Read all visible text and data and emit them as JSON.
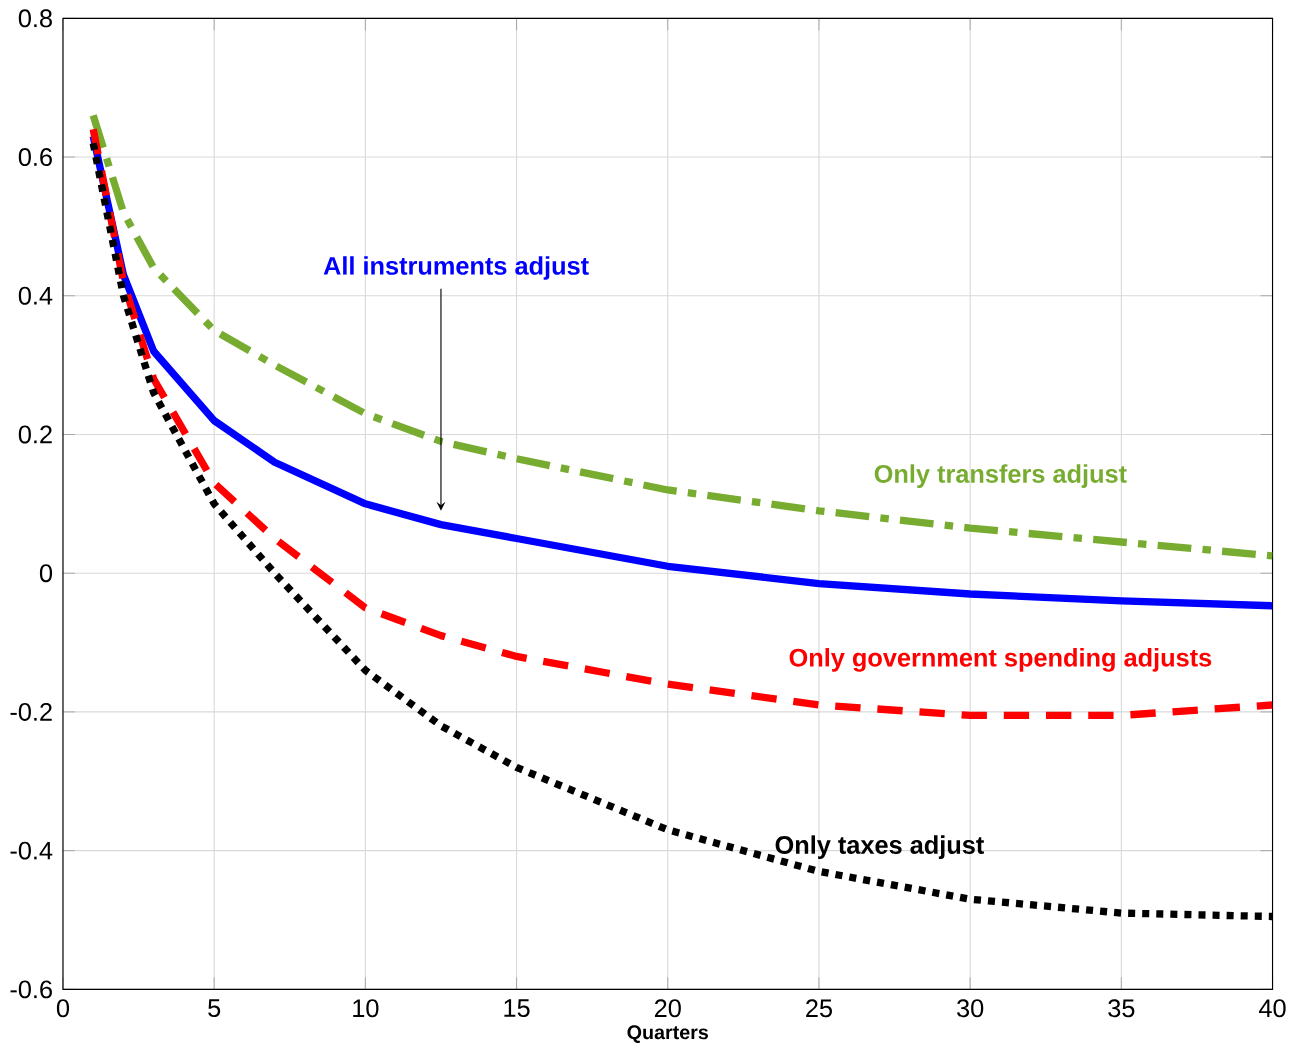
{
  "chart_data": {
    "type": "line",
    "xlabel": "Quarters",
    "x": [
      1,
      2,
      3,
      5,
      7,
      10,
      12.5,
      15,
      20,
      25,
      30,
      35,
      40
    ],
    "series": [
      {
        "name": "All instruments adjust",
        "color": "#0000ff",
        "line_style": "solid",
        "values": [
          0.63,
          0.43,
          0.32,
          0.22,
          0.16,
          0.1,
          0.07,
          0.05,
          0.01,
          -0.015,
          -0.03,
          -0.04,
          -0.047
        ]
      },
      {
        "name": "Only transfers adjust",
        "color": "#77ac30",
        "line_style": "dashdot",
        "values": [
          0.66,
          0.52,
          0.44,
          0.35,
          0.3,
          0.23,
          0.19,
          0.165,
          0.12,
          0.09,
          0.065,
          0.045,
          0.025
        ]
      },
      {
        "name": "Only government spending adjusts",
        "color": "#ff0000",
        "line_style": "dashed",
        "values": [
          0.64,
          0.42,
          0.28,
          0.13,
          0.05,
          -0.05,
          -0.09,
          -0.12,
          -0.16,
          -0.19,
          -0.205,
          -0.205,
          -0.19
        ]
      },
      {
        "name": "Only taxes adjust",
        "color": "#000000",
        "line_style": "dotted",
        "values": [
          0.62,
          0.4,
          0.26,
          0.1,
          0.0,
          -0.14,
          -0.22,
          -0.28,
          -0.37,
          -0.43,
          -0.47,
          -0.49,
          -0.495
        ]
      }
    ],
    "xlim": [
      0,
      40
    ],
    "ylim": [
      -0.6,
      0.8
    ],
    "xticks": [
      0,
      5,
      10,
      15,
      20,
      25,
      30,
      35,
      40
    ],
    "yticks": [
      -0.6,
      -0.4,
      -0.2,
      0,
      0.2,
      0.4,
      0.6,
      0.8
    ],
    "grid": true
  }
}
